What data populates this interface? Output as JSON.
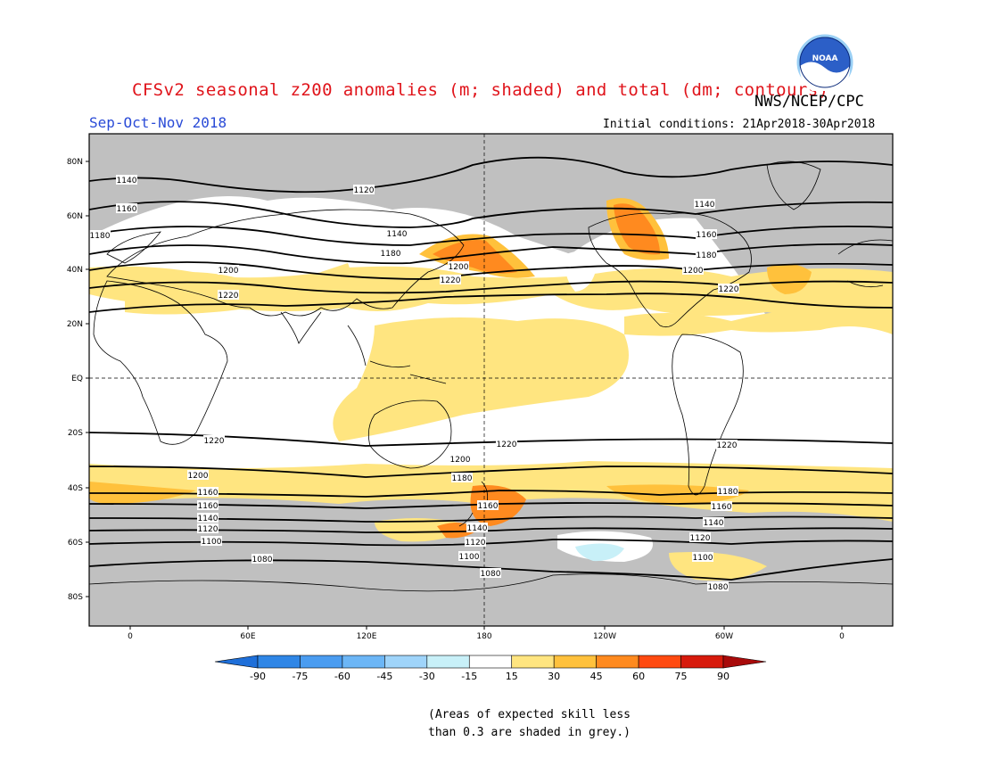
{
  "header": {
    "title": "CFSv2 seasonal z200 anomalies (m; shaded) and total (dm; contours)",
    "agency": "NWS/NCEP/CPC",
    "season": "Sep-Oct-Nov 2018",
    "initial_conditions": "Initial conditions: 21Apr2018-30Apr2018",
    "logo_text": "NOAA"
  },
  "map": {
    "lat_labels": [
      "80N",
      "60N",
      "40N",
      "20N",
      "EQ",
      "20S",
      "40S",
      "60S",
      "80S"
    ],
    "lon_labels": [
      "0",
      "60E",
      "120E",
      "180",
      "120W",
      "60W",
      "0"
    ],
    "contour_values": [
      "1140",
      "1120",
      "1160",
      "1180",
      "1140",
      "1180",
      "1200",
      "1220",
      "1200",
      "1220",
      "1140",
      "1160",
      "1180",
      "1200",
      "1220",
      "1220",
      "1220",
      "1220",
      "1200",
      "1180",
      "1200",
      "1160",
      "1160",
      "1140",
      "1120",
      "1100",
      "1080",
      "1160",
      "1140",
      "1120",
      "1100",
      "1080",
      "1180",
      "1160",
      "1140",
      "1120",
      "1100",
      "1080"
    ]
  },
  "colorbar": {
    "values": [
      "-90",
      "-75",
      "-60",
      "-45",
      "-30",
      "-15",
      "15",
      "30",
      "45",
      "60",
      "75",
      "90"
    ],
    "colors": [
      "#1e6fd9",
      "#2f86e6",
      "#4a9cf0",
      "#6cb6f6",
      "#9fd4fa",
      "#c8f0f8",
      "#ffffff",
      "#ffe580",
      "#ffc13c",
      "#ff8a1f",
      "#ff4a10",
      "#d71a0c",
      "#a80a0a"
    ]
  },
  "footer": {
    "note_line1": "(Areas of expected skill less",
    "note_line2": "than 0.3 are shaded in grey.)"
  }
}
